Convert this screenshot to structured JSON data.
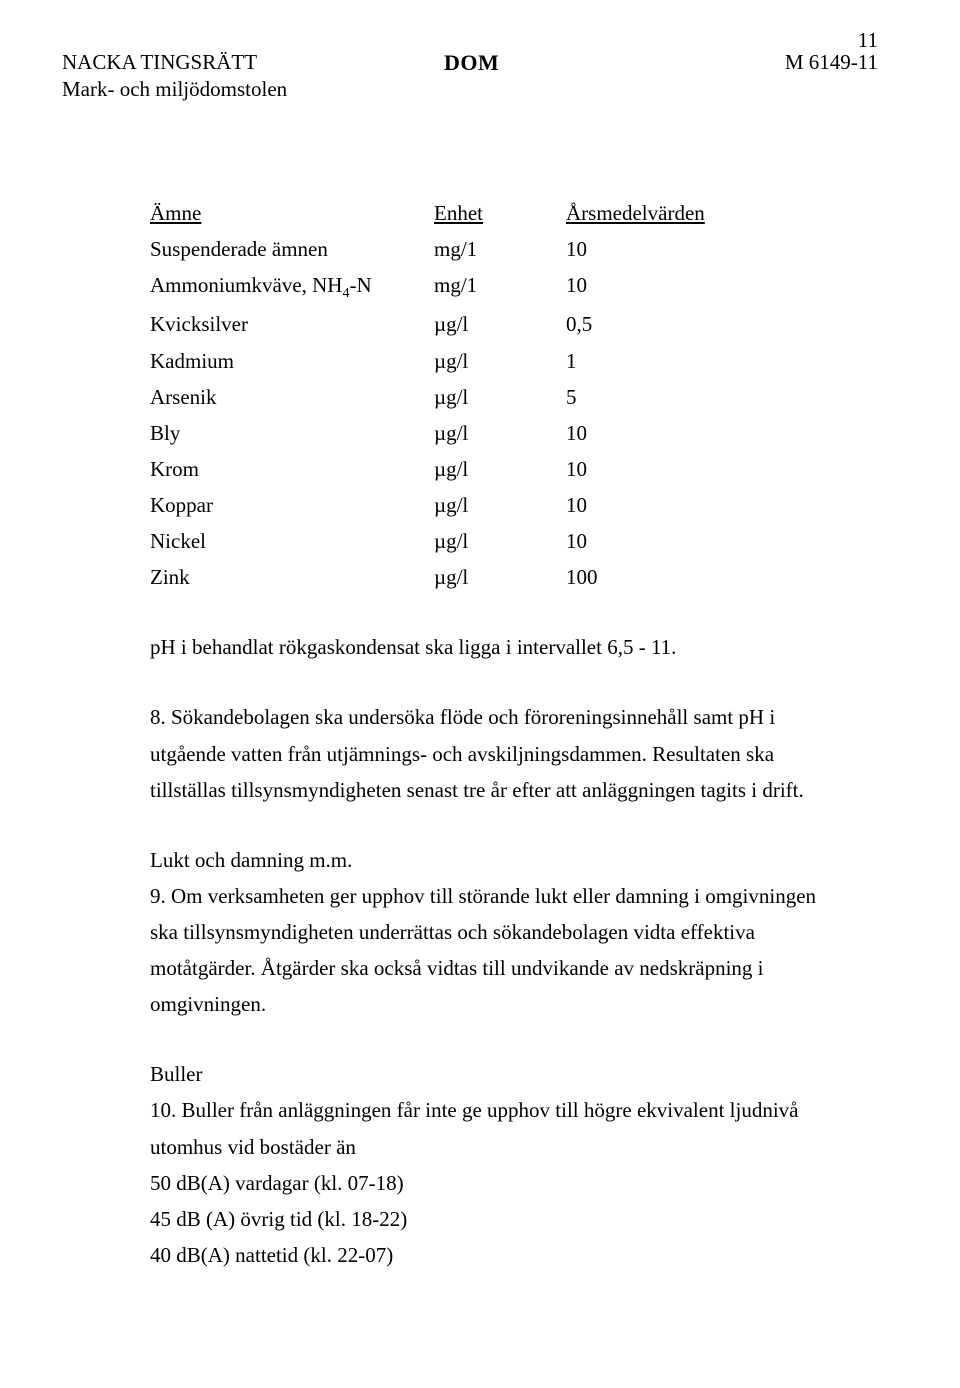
{
  "page_number": "11",
  "header": {
    "court_name": "NACKA TINGSRÄTT",
    "court_dept": "Mark- och miljödomstolen",
    "title": "DOM",
    "case_number": "M 6149-11"
  },
  "table": {
    "headers": {
      "name": "Ämne",
      "unit": "Enhet",
      "value": "Årsmedelvärden"
    },
    "rows": [
      {
        "name": "Suspenderade ämnen",
        "unit": "mg/1",
        "value": "10"
      },
      {
        "name": "Ammoniumkväve, NH4-N",
        "unit": "mg/1",
        "value": "10"
      },
      {
        "name": "Kvicksilver",
        "unit": "µg/l",
        "value": "0,5"
      },
      {
        "name": "Kadmium",
        "unit": "µg/l",
        "value": "1"
      },
      {
        "name": "Arsenik",
        "unit": "µg/l",
        "value": "5"
      },
      {
        "name": "Bly",
        "unit": "µg/l",
        "value": "10"
      },
      {
        "name": "Krom",
        "unit": "µg/l",
        "value": "10"
      },
      {
        "name": "Koppar",
        "unit": "µg/l",
        "value": "10"
      },
      {
        "name": "Nickel",
        "unit": "µg/l",
        "value": "10"
      },
      {
        "name": "Zink",
        "unit": "µg/l",
        "value": "100"
      }
    ]
  },
  "paragraphs": {
    "p1": "pH i behandlat rökgaskondensat ska ligga i intervallet 6,5 - 11.",
    "p2": "8. Sökandebolagen ska undersöka flöde och föroreningsinnehåll samt pH i utgående vatten från utjämnings- och avskiljningsdammen. Resultaten ska tillställas tillsynsmyndigheten senast tre år efter att anläggningen tagits i drift.",
    "h1": "Lukt och damning m.m.",
    "p3": "9. Om verksamheten ger upphov till störande lukt eller damning i omgivningen ska tillsynsmyndigheten underrättas och sökandebolagen vidta effektiva motåtgärder. Åtgärder ska också vidtas till undvikande av nedskräpning i omgivningen.",
    "h2": "Buller",
    "p4": "10. Buller från anläggningen får inte ge upphov till högre ekvivalent ljudnivå utomhus vid bostäder än",
    "line1": "50 dB(A) vardagar (kl. 07-18)",
    "line2": "45 dB (A) övrig tid (kl. 18-22)",
    "line3": "40 dB(A) nattetid (kl. 22-07)"
  }
}
